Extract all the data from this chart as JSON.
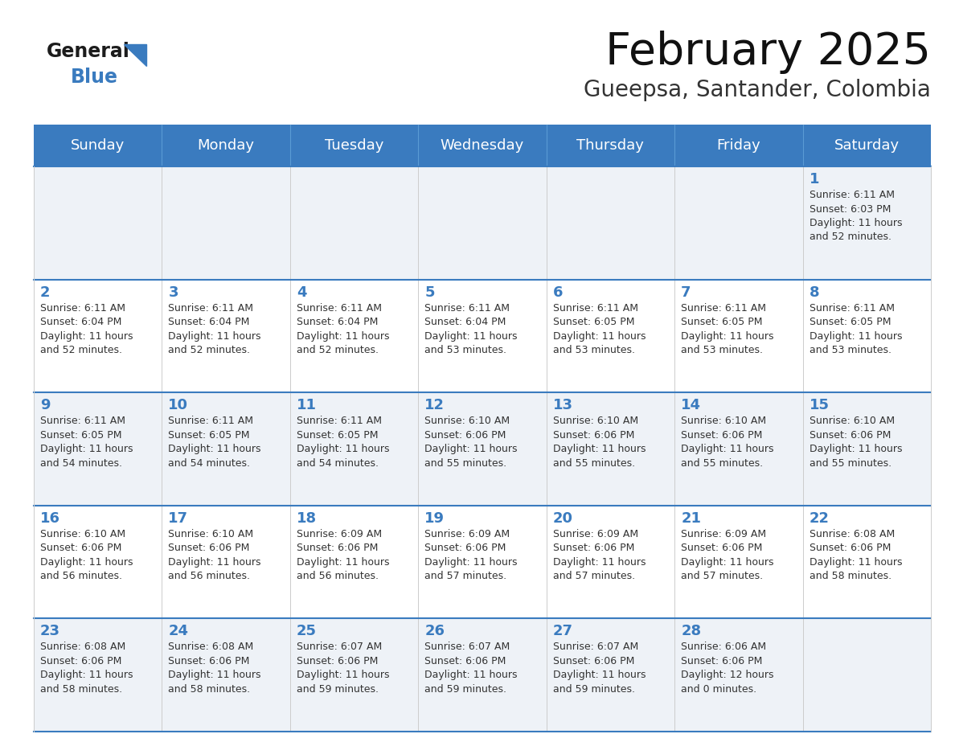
{
  "title": "February 2025",
  "subtitle": "Gueepsa, Santander, Colombia",
  "header_bg": "#3a7bbf",
  "header_text": "#ffffff",
  "day_names": [
    "Sunday",
    "Monday",
    "Tuesday",
    "Wednesday",
    "Thursday",
    "Friday",
    "Saturday"
  ],
  "row_bg_odd": "#eef2f7",
  "row_bg_even": "#ffffff",
  "cell_border": "#cccccc",
  "row_border": "#3a7bbf",
  "date_color": "#3a7bbf",
  "info_color": "#333333",
  "calendar": [
    [
      null,
      null,
      null,
      null,
      null,
      null,
      {
        "day": 1,
        "sunrise": "6:11 AM",
        "sunset": "6:03 PM",
        "daylight": "11 hours\nand 52 minutes."
      }
    ],
    [
      {
        "day": 2,
        "sunrise": "6:11 AM",
        "sunset": "6:04 PM",
        "daylight": "11 hours\nand 52 minutes."
      },
      {
        "day": 3,
        "sunrise": "6:11 AM",
        "sunset": "6:04 PM",
        "daylight": "11 hours\nand 52 minutes."
      },
      {
        "day": 4,
        "sunrise": "6:11 AM",
        "sunset": "6:04 PM",
        "daylight": "11 hours\nand 52 minutes."
      },
      {
        "day": 5,
        "sunrise": "6:11 AM",
        "sunset": "6:04 PM",
        "daylight": "11 hours\nand 53 minutes."
      },
      {
        "day": 6,
        "sunrise": "6:11 AM",
        "sunset": "6:05 PM",
        "daylight": "11 hours\nand 53 minutes."
      },
      {
        "day": 7,
        "sunrise": "6:11 AM",
        "sunset": "6:05 PM",
        "daylight": "11 hours\nand 53 minutes."
      },
      {
        "day": 8,
        "sunrise": "6:11 AM",
        "sunset": "6:05 PM",
        "daylight": "11 hours\nand 53 minutes."
      }
    ],
    [
      {
        "day": 9,
        "sunrise": "6:11 AM",
        "sunset": "6:05 PM",
        "daylight": "11 hours\nand 54 minutes."
      },
      {
        "day": 10,
        "sunrise": "6:11 AM",
        "sunset": "6:05 PM",
        "daylight": "11 hours\nand 54 minutes."
      },
      {
        "day": 11,
        "sunrise": "6:11 AM",
        "sunset": "6:05 PM",
        "daylight": "11 hours\nand 54 minutes."
      },
      {
        "day": 12,
        "sunrise": "6:10 AM",
        "sunset": "6:06 PM",
        "daylight": "11 hours\nand 55 minutes."
      },
      {
        "day": 13,
        "sunrise": "6:10 AM",
        "sunset": "6:06 PM",
        "daylight": "11 hours\nand 55 minutes."
      },
      {
        "day": 14,
        "sunrise": "6:10 AM",
        "sunset": "6:06 PM",
        "daylight": "11 hours\nand 55 minutes."
      },
      {
        "day": 15,
        "sunrise": "6:10 AM",
        "sunset": "6:06 PM",
        "daylight": "11 hours\nand 55 minutes."
      }
    ],
    [
      {
        "day": 16,
        "sunrise": "6:10 AM",
        "sunset": "6:06 PM",
        "daylight": "11 hours\nand 56 minutes."
      },
      {
        "day": 17,
        "sunrise": "6:10 AM",
        "sunset": "6:06 PM",
        "daylight": "11 hours\nand 56 minutes."
      },
      {
        "day": 18,
        "sunrise": "6:09 AM",
        "sunset": "6:06 PM",
        "daylight": "11 hours\nand 56 minutes."
      },
      {
        "day": 19,
        "sunrise": "6:09 AM",
        "sunset": "6:06 PM",
        "daylight": "11 hours\nand 57 minutes."
      },
      {
        "day": 20,
        "sunrise": "6:09 AM",
        "sunset": "6:06 PM",
        "daylight": "11 hours\nand 57 minutes."
      },
      {
        "day": 21,
        "sunrise": "6:09 AM",
        "sunset": "6:06 PM",
        "daylight": "11 hours\nand 57 minutes."
      },
      {
        "day": 22,
        "sunrise": "6:08 AM",
        "sunset": "6:06 PM",
        "daylight": "11 hours\nand 58 minutes."
      }
    ],
    [
      {
        "day": 23,
        "sunrise": "6:08 AM",
        "sunset": "6:06 PM",
        "daylight": "11 hours\nand 58 minutes."
      },
      {
        "day": 24,
        "sunrise": "6:08 AM",
        "sunset": "6:06 PM",
        "daylight": "11 hours\nand 58 minutes."
      },
      {
        "day": 25,
        "sunrise": "6:07 AM",
        "sunset": "6:06 PM",
        "daylight": "11 hours\nand 59 minutes."
      },
      {
        "day": 26,
        "sunrise": "6:07 AM",
        "sunset": "6:06 PM",
        "daylight": "11 hours\nand 59 minutes."
      },
      {
        "day": 27,
        "sunrise": "6:07 AM",
        "sunset": "6:06 PM",
        "daylight": "11 hours\nand 59 minutes."
      },
      {
        "day": 28,
        "sunrise": "6:06 AM",
        "sunset": "6:06 PM",
        "daylight": "12 hours\nand 0 minutes."
      },
      null
    ]
  ]
}
